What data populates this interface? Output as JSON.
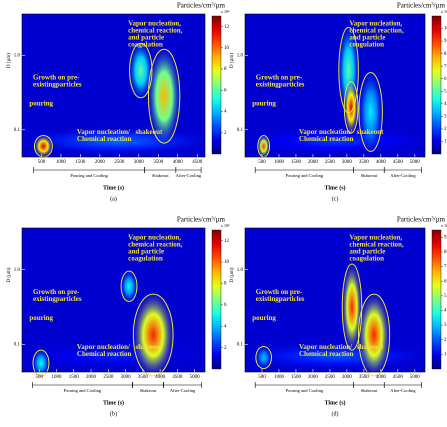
{
  "chart_data": [
    {
      "type": "heatmap",
      "panel_label": "(a)",
      "colorbar_title": "Particles/cm³/µm",
      "colorbar_exponent": "x 10⁴",
      "xlabel": "Time (s)",
      "ylabel": "D (µm)",
      "log_y": true,
      "xlim": [
        0,
        4700
      ],
      "xticks": [
        500,
        1000,
        1500,
        2000,
        2500,
        3000,
        3500,
        4000,
        4500
      ],
      "ylim": [
        0.043,
        3.6
      ],
      "yticks": [
        0.1,
        {
          "value": 1,
          "label": "1.0"
        }
      ],
      "clim": [
        0,
        13
      ],
      "cticks": [
        2,
        4,
        6,
        8,
        10,
        12
      ],
      "phases": [
        {
          "label": "Pouring and Cooling",
          "start": 300,
          "end": 3150
        },
        {
          "label": "Shakeout",
          "start": 3150,
          "end": 3950
        },
        {
          "label": "After-Cooling",
          "start": 3950,
          "end": 4600
        }
      ],
      "hotspots": [
        {
          "x": [
            400,
            4500
          ],
          "y": [
            0.05,
            0.1
          ],
          "value": 3
        },
        {
          "x": [
            350,
            750
          ],
          "y": [
            0.045,
            0.08
          ],
          "value": 12
        },
        {
          "x": [
            2800,
            3300
          ],
          "y": [
            0.3,
            1.3
          ],
          "value": 6
        },
        {
          "x": [
            3300,
            4000
          ],
          "y": [
            0.08,
            1.0
          ],
          "value": 9
        }
      ],
      "annotations": [
        [
          "Vapor nucleation,",
          "chemical reaction,",
          "and particle",
          "coagulation"
        ],
        [
          "Growth on pre-",
          "existingparticles"
        ],
        [
          "pouring"
        ],
        [
          "Vapor nucleation/",
          "Chemical reaction"
        ],
        [
          "shakeout"
        ]
      ]
    },
    {
      "type": "heatmap",
      "panel_label": "(b)",
      "colorbar_title": "Particles/cm³/µm",
      "colorbar_exponent": "x 10⁴",
      "xlabel": "Time (s)",
      "ylabel": "D (µm)",
      "log_y": true,
      "xlim": [
        0,
        5300
      ],
      "xticks": [
        500,
        1000,
        1500,
        2000,
        2500,
        3000,
        3500,
        4000,
        4500,
        5000
      ],
      "ylim": [
        0.043,
        3.6
      ],
      "yticks": [
        0.1,
        {
          "value": 1,
          "label": "1.0"
        }
      ],
      "clim": [
        0,
        13
      ],
      "cticks": [
        2,
        4,
        6,
        8,
        10,
        12
      ],
      "phases": [
        {
          "label": "Pouring and Cooling",
          "start": 300,
          "end": 3200
        },
        {
          "label": "Shakeout",
          "start": 3200,
          "end": 4100
        },
        {
          "label": "After-Cooling",
          "start": 4100,
          "end": 5200
        }
      ],
      "hotspots": [
        {
          "x": [
            400,
            5000
          ],
          "y": [
            0.05,
            0.1
          ],
          "value": 2
        },
        {
          "x": [
            350,
            750
          ],
          "y": [
            0.04,
            0.08
          ],
          "value": 5
        },
        {
          "x": [
            2900,
            3300
          ],
          "y": [
            0.4,
            0.9
          ],
          "value": 5
        },
        {
          "x": [
            3300,
            4300
          ],
          "y": [
            0.045,
            0.4
          ],
          "value": 11
        }
      ],
      "annotations": [
        [
          "Vapor nucleation,",
          "chemical reaction,",
          "and particle",
          "coagulation"
        ],
        [
          "Growth on pre-",
          "existingparticles"
        ],
        [
          "pouring"
        ],
        [
          "Vapor nucleation/",
          "Chemical reaction"
        ],
        [
          "shakeout"
        ]
      ]
    },
    {
      "type": "heatmap",
      "panel_label": "(c)",
      "colorbar_title": "Particles/cm³/µm",
      "colorbar_exponent": "x 10⁴",
      "xlabel": "Time (s)",
      "ylabel": "D (µm)",
      "log_y": true,
      "xlim": [
        0,
        5300
      ],
      "xticks": [
        500,
        1000,
        1500,
        2000,
        2500,
        3000,
        3500,
        4000,
        4500,
        5000
      ],
      "ylim": [
        0.043,
        3.6
      ],
      "yticks": [
        0.1,
        {
          "value": 1,
          "label": "1.0"
        }
      ],
      "clim": [
        0,
        11
      ],
      "cticks": [
        1,
        2,
        3,
        4,
        5,
        6,
        7,
        8,
        9,
        10
      ],
      "phases": [
        {
          "label": "Pouring and Cooling",
          "start": 300,
          "end": 3200
        },
        {
          "label": "Shakeout",
          "start": 3200,
          "end": 4100
        },
        {
          "label": "After-Cooling",
          "start": 4100,
          "end": 5200
        }
      ],
      "hotspots": [
        {
          "x": [
            400,
            5000
          ],
          "y": [
            0.05,
            0.1
          ],
          "value": 2
        },
        {
          "x": [
            400,
            700
          ],
          "y": [
            0.045,
            0.08
          ],
          "value": 9
        },
        {
          "x": [
            2800,
            3300
          ],
          "y": [
            0.2,
            2
          ],
          "value": 5
        },
        {
          "x": [
            2950,
            3300
          ],
          "y": [
            0.1,
            0.4
          ],
          "value": 10
        },
        {
          "x": [
            3400,
            4000
          ],
          "y": [
            0.06,
            0.5
          ],
          "value": 4
        }
      ],
      "annotations": [
        [
          "Vapor nucleation,",
          "chemical reaction,",
          "and particle",
          "coagulation"
        ],
        [
          "Growth on pre-",
          "existingparticles"
        ],
        [
          "pouring"
        ],
        [
          "Vapor nucleation/",
          "Chemical reaction"
        ],
        [
          "shakeout"
        ]
      ]
    },
    {
      "type": "heatmap",
      "panel_label": "(d)",
      "colorbar_title": "Particles/cm³/µm",
      "colorbar_exponent": "x 10⁴",
      "xlabel": "Time (s)",
      "ylabel": "D (µm)",
      "log_y": true,
      "xlim": [
        0,
        5300
      ],
      "xticks": [
        500,
        1000,
        1500,
        2000,
        2500,
        3000,
        3500,
        4000,
        4500,
        5000
      ],
      "ylim": [
        0.043,
        3.6
      ],
      "yticks": [
        0.1,
        {
          "value": 1,
          "label": "1.0"
        }
      ],
      "clim": [
        0,
        9.5
      ],
      "cticks": [
        1,
        2,
        3,
        4,
        5,
        6,
        7,
        8,
        9
      ],
      "phases": [
        {
          "label": "Pouring and Cooling",
          "start": 300,
          "end": 3200
        },
        {
          "label": "Shakeout",
          "start": 3200,
          "end": 4100
        },
        {
          "label": "After-Cooling",
          "start": 4100,
          "end": 5200
        }
      ],
      "hotspots": [
        {
          "x": [
            400,
            5000
          ],
          "y": [
            0.05,
            0.1
          ],
          "value": 2
        },
        {
          "x": [
            350,
            750
          ],
          "y": [
            0.05,
            0.09
          ],
          "value": 3
        },
        {
          "x": [
            2900,
            3400
          ],
          "y": [
            0.1,
            1.0
          ],
          "value": 8
        },
        {
          "x": [
            3400,
            4200
          ],
          "y": [
            0.045,
            0.4
          ],
          "value": 8
        }
      ],
      "annotations": [
        [
          "Vapor nucleation,",
          "chemical reaction,",
          "and particle",
          "coagulation"
        ],
        [
          "Growth on pre-",
          "existingparticles"
        ],
        [
          "pouring"
        ],
        [
          "Vapor nucleation/",
          "Chemical reaction"
        ],
        [
          "shakeout"
        ]
      ]
    }
  ]
}
